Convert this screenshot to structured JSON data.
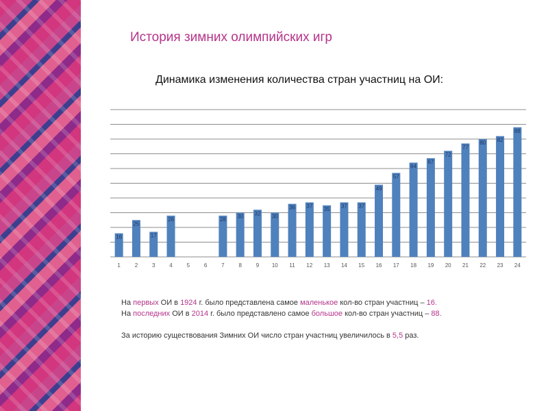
{
  "header": {
    "title": "История зимних олимпийских игр",
    "subtitle": "Динамика изменения количества стран участниц на ОИ:",
    "title_color": "#b5338a"
  },
  "chart_data": {
    "type": "bar",
    "categories": [
      "1",
      "2",
      "3",
      "4",
      "5",
      "6",
      "7",
      "8",
      "9",
      "10",
      "11",
      "12",
      "13",
      "14",
      "15",
      "16",
      "17",
      "18",
      "19",
      "20",
      "21",
      "22",
      "23",
      "24"
    ],
    "values": [
      16,
      25,
      17,
      28,
      null,
      null,
      28,
      30,
      32,
      30,
      36,
      37,
      35,
      37,
      37,
      49,
      57,
      64,
      67,
      72,
      77,
      80,
      82,
      88
    ],
    "color": "#4f81bd",
    "ylim": [
      0,
      100
    ],
    "yticks": [
      0,
      10,
      20,
      30,
      40,
      50,
      60,
      70,
      80,
      90,
      100
    ],
    "grid": true
  },
  "notes": {
    "highlight_color": "#b5338a",
    "paragraphs": [
      {
        "runs": [
          {
            "text": "На ",
            "highlight": false
          },
          {
            "text": "первых",
            "highlight": true
          },
          {
            "text": " ОИ в ",
            "highlight": false
          },
          {
            "text": "1924",
            "highlight": true
          },
          {
            "text": " г. было представлена самое ",
            "highlight": false
          },
          {
            "text": "маленькое",
            "highlight": true
          },
          {
            "text": " кол-во стран участниц – ",
            "highlight": false
          },
          {
            "text": "16.",
            "highlight": true
          }
        ]
      },
      {
        "runs": [
          {
            "text": "На ",
            "highlight": false
          },
          {
            "text": "последних",
            "highlight": true
          },
          {
            "text": " ОИ в ",
            "highlight": false
          },
          {
            "text": "2014",
            "highlight": true
          },
          {
            "text": " г. было представлено самое ",
            "highlight": false
          },
          {
            "text": "большое",
            "highlight": true
          },
          {
            "text": " кол-во стран участниц – ",
            "highlight": false
          },
          {
            "text": "88.",
            "highlight": true
          }
        ]
      },
      {
        "runs": [
          {
            "text": "За историю существования Зимних ОИ число стран участниц увеличилось в ",
            "highlight": false
          },
          {
            "text": "5,5",
            "highlight": true
          },
          {
            "text": " раз.",
            "highlight": false
          }
        ]
      }
    ]
  }
}
